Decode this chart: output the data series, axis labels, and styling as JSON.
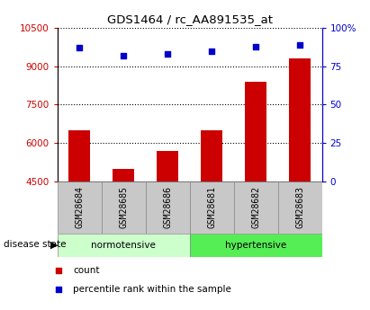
{
  "title": "GDS1464 / rc_AA891535_at",
  "samples": [
    "GSM28684",
    "GSM28685",
    "GSM28686",
    "GSM28681",
    "GSM28682",
    "GSM28683"
  ],
  "counts": [
    6500,
    5000,
    5700,
    6500,
    8400,
    9300
  ],
  "percentiles": [
    87,
    82,
    83,
    85,
    88,
    89
  ],
  "ylim_left": [
    4500,
    10500
  ],
  "ylim_right": [
    0,
    100
  ],
  "yticks_left": [
    4500,
    6000,
    7500,
    9000,
    10500
  ],
  "yticks_right": [
    0,
    25,
    50,
    75,
    100
  ],
  "bar_color": "#cc0000",
  "dot_color": "#0000cc",
  "sample_box_color": "#c8c8c8",
  "norm_color": "#ccffcc",
  "hyper_color": "#55ee55",
  "norm_label": "normotensive",
  "hyper_label": "hypertensive",
  "disease_state_label": "disease state",
  "legend_count": "count",
  "legend_pct": "percentile rank within the sample"
}
